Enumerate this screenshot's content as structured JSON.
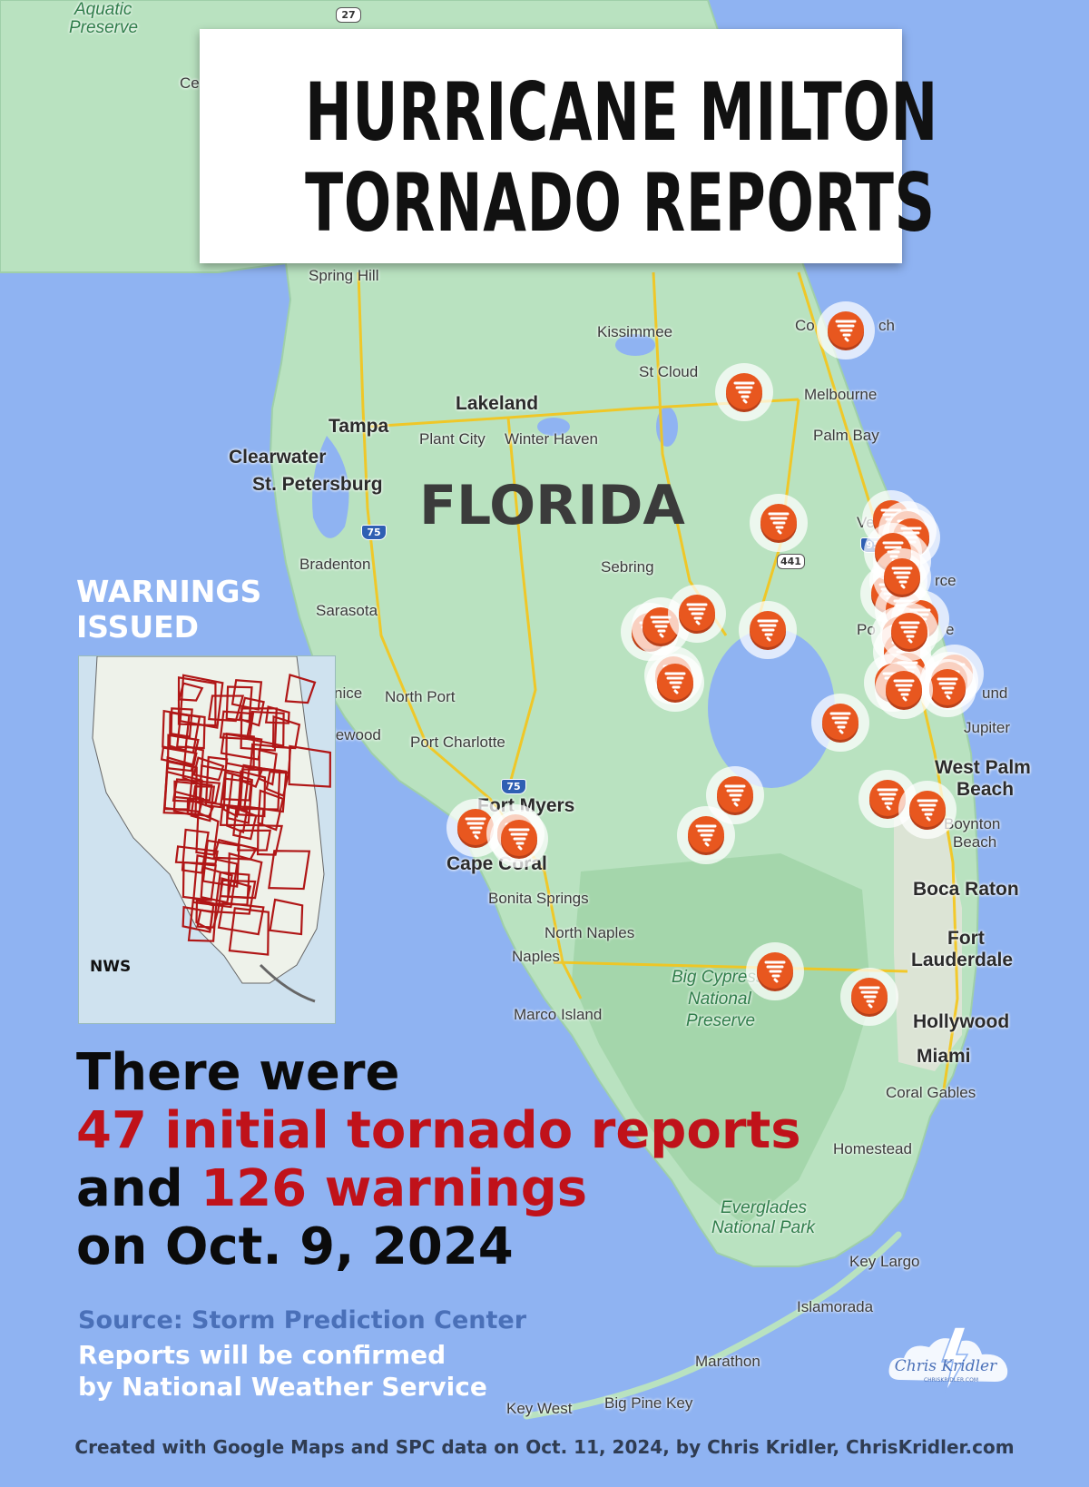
{
  "title": {
    "line1": "HURRICANE MILTON",
    "line2": "TORNADO REPORTS"
  },
  "map": {
    "state_label": "FLORIDA",
    "places": [
      {
        "key": "aquatic",
        "text": "Aquatic",
        "cls": "park"
      },
      {
        "key": "preserve1",
        "text": "Preserve",
        "cls": "park"
      },
      {
        "key": "ce",
        "text": "Ce",
        "cls": ""
      },
      {
        "key": "spring_hill",
        "text": "Spring Hill",
        "cls": ""
      },
      {
        "key": "kissimmee",
        "text": "Kissimmee",
        "cls": ""
      },
      {
        "key": "st_cloud",
        "text": "St Cloud",
        "cls": ""
      },
      {
        "key": "cocoa_beach_a",
        "text": "Co",
        "cls": ""
      },
      {
        "key": "cocoa_beach_b",
        "text": "ch",
        "cls": ""
      },
      {
        "key": "melbourne",
        "text": "Melbourne",
        "cls": ""
      },
      {
        "key": "palm_bay",
        "text": "Palm Bay",
        "cls": ""
      },
      {
        "key": "lakeland",
        "text": "Lakeland",
        "cls": "big"
      },
      {
        "key": "tampa",
        "text": "Tampa",
        "cls": "big"
      },
      {
        "key": "plant_city",
        "text": "Plant City",
        "cls": ""
      },
      {
        "key": "winter_haven",
        "text": "Winter Haven",
        "cls": ""
      },
      {
        "key": "clearwater",
        "text": "Clearwater",
        "cls": "big"
      },
      {
        "key": "st_pete",
        "text": "St. Petersburg",
        "cls": "big"
      },
      {
        "key": "vero_a",
        "text": "Ve",
        "cls": ""
      },
      {
        "key": "bradenton",
        "text": "Bradenton",
        "cls": ""
      },
      {
        "key": "sebring",
        "text": "Sebring",
        "cls": ""
      },
      {
        "key": "fort_pierce_b",
        "text": "rce",
        "cls": ""
      },
      {
        "key": "sarasota",
        "text": "Sarasota",
        "cls": ""
      },
      {
        "key": "port_st_lucie_a",
        "text": "Po",
        "cls": ""
      },
      {
        "key": "port_st_lucie_b",
        "text": "e",
        "cls": ""
      },
      {
        "key": "venice",
        "text": "nice",
        "cls": ""
      },
      {
        "key": "north_port",
        "text": "North Port",
        "cls": ""
      },
      {
        "key": "hobe_sound_b",
        "text": "und",
        "cls": ""
      },
      {
        "key": "englewood",
        "text": "lewood",
        "cls": ""
      },
      {
        "key": "port_charlotte",
        "text": "Port Charlotte",
        "cls": ""
      },
      {
        "key": "jupiter",
        "text": "Jupiter",
        "cls": ""
      },
      {
        "key": "wpb1",
        "text": "West Palm",
        "cls": "big"
      },
      {
        "key": "wpb2",
        "text": "Beach",
        "cls": "big"
      },
      {
        "key": "fort_myers",
        "text": "Fort Myers",
        "cls": "big"
      },
      {
        "key": "boynton1",
        "text": "Boynton",
        "cls": ""
      },
      {
        "key": "boynton2",
        "text": "Beach",
        "cls": ""
      },
      {
        "key": "cape_coral",
        "text": "Cape Coral",
        "cls": "big"
      },
      {
        "key": "bonita",
        "text": "Bonita Springs",
        "cls": ""
      },
      {
        "key": "boca",
        "text": "Boca Raton",
        "cls": "big"
      },
      {
        "key": "north_naples",
        "text": "North Naples",
        "cls": ""
      },
      {
        "key": "ftl1",
        "text": "Fort",
        "cls": "big"
      },
      {
        "key": "ftl2",
        "text": "Lauderdale",
        "cls": "big"
      },
      {
        "key": "naples",
        "text": "Naples",
        "cls": ""
      },
      {
        "key": "big_cypress1",
        "text": "Big Cypress",
        "cls": "park"
      },
      {
        "key": "big_cypress2",
        "text": "National",
        "cls": "park"
      },
      {
        "key": "big_cypress3",
        "text": "Preserve",
        "cls": "park"
      },
      {
        "key": "marco",
        "text": "Marco Island",
        "cls": ""
      },
      {
        "key": "hollywood",
        "text": "Hollywood",
        "cls": "big"
      },
      {
        "key": "miami",
        "text": "Miami",
        "cls": "big"
      },
      {
        "key": "coral_gables",
        "text": "Coral Gables",
        "cls": ""
      },
      {
        "key": "homestead",
        "text": "Homestead",
        "cls": ""
      },
      {
        "key": "everglades1",
        "text": "Everglades",
        "cls": "park"
      },
      {
        "key": "everglades2",
        "text": "National Park",
        "cls": "park"
      },
      {
        "key": "key_largo",
        "text": "Key Largo",
        "cls": ""
      },
      {
        "key": "islamorada",
        "text": "Islamorada",
        "cls": ""
      },
      {
        "key": "marathon",
        "text": "Marathon",
        "cls": ""
      },
      {
        "key": "big_pine",
        "text": "Big Pine Key",
        "cls": ""
      },
      {
        "key": "key_west",
        "text": "Key West",
        "cls": ""
      }
    ],
    "shields": [
      {
        "key": "i75a",
        "text": "75"
      },
      {
        "key": "i75b",
        "text": "75"
      },
      {
        "key": "us441",
        "text": "441"
      },
      {
        "key": "us27",
        "text": "27"
      },
      {
        "key": "i95",
        "text": "95"
      }
    ],
    "tornado_report_count_markers": 47
  },
  "inset": {
    "heading_line1": "WARNINGS",
    "heading_line2": "ISSUED",
    "source": "NWS"
  },
  "headline": {
    "line1": "There were",
    "line2_red": "47 initial tornado reports",
    "line3_prefix": "and ",
    "line3_red": "126 warnings",
    "line4": "on Oct. 9, 2024"
  },
  "source_line": "Source: Storm Prediction Center",
  "note": {
    "line1": "Reports will be confirmed",
    "line2": "by National Weather Service"
  },
  "credit": "Created with Google Maps and SPC data on Oct. 11, 2024, by Chris Kridler, ChrisKridler.com",
  "logo": {
    "name": "Chris Kridler",
    "url": "CHRISKRIDLER.COM"
  },
  "colors": {
    "water": "#8fb3f2",
    "land": "#b9e2c0",
    "marker": "#e8571f",
    "headline_red": "#c0121a",
    "source_blue": "#4a70b8"
  }
}
